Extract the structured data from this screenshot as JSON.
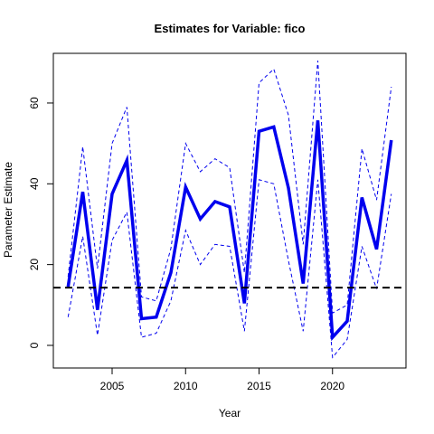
{
  "chart_data": {
    "type": "line",
    "title": "Estimates for Variable: fico",
    "xlabel": "Year",
    "ylabel": "Parameter Estimate",
    "xlim": [
      2001,
      2025
    ],
    "ylim": [
      -5.6,
      72.3
    ],
    "x_ticks": [
      2005,
      2010,
      2015,
      2020
    ],
    "y_ticks": [
      0,
      20,
      40,
      60
    ],
    "grid": false,
    "legend": "none",
    "x": [
      2002,
      2003,
      2004,
      2005,
      2006,
      2007,
      2008,
      2009,
      2010,
      2011,
      2012,
      2013,
      2014,
      2015,
      2016,
      2017,
      2018,
      2019,
      2020,
      2021,
      2022,
      2023,
      2024
    ],
    "series": [
      {
        "role": "estimate",
        "color": "#0000ee",
        "style": "solid-thick",
        "values": [
          14.5,
          38.0,
          8.8,
          37.5,
          45.8,
          6.6,
          7.0,
          18.0,
          39.2,
          31.3,
          35.6,
          34.3,
          10.4,
          53.0,
          54.1,
          39.0,
          15.3,
          55.7,
          2.0,
          6.0,
          36.6,
          23.8,
          50.8
        ]
      },
      {
        "role": "upper-bound",
        "color": "#0000ee",
        "style": "dashed",
        "values": [
          17.0,
          49.2,
          19.0,
          50.0,
          59.0,
          12.0,
          11.0,
          24.0,
          50.0,
          43.0,
          46.2,
          44.0,
          18.0,
          65.0,
          68.4,
          57.0,
          25.0,
          70.5,
          8.0,
          10.0,
          48.7,
          36.0,
          64.0
        ]
      },
      {
        "role": "lower-bound",
        "color": "#0000ee",
        "style": "dashed",
        "values": [
          7.0,
          27.0,
          2.5,
          26.0,
          33.0,
          2.0,
          3.0,
          11.0,
          28.5,
          20.0,
          25.0,
          24.5,
          3.5,
          41.0,
          40.0,
          21.0,
          3.5,
          41.0,
          -3.0,
          1.5,
          24.5,
          14.0,
          37.5
        ]
      }
    ],
    "reference_line": {
      "y": 14.3,
      "color": "#000000",
      "style": "dashed-thick"
    }
  }
}
